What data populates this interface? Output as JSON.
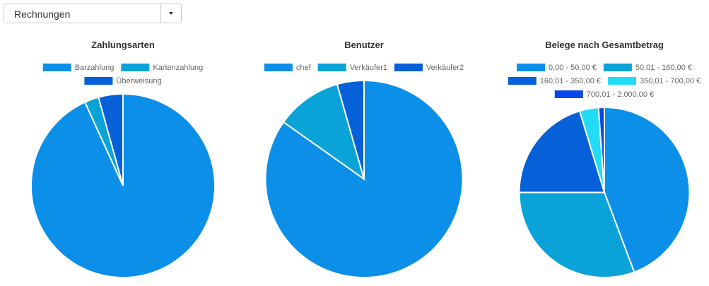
{
  "dropdown": {
    "label": "Rechnungen"
  },
  "chart_data": [
    {
      "type": "pie",
      "title": "Zahlungsarten",
      "categories": [
        "Barzahlung",
        "Kartenzahlung",
        "Überweisung"
      ],
      "values": [
        93.2,
        2.5,
        4.3
      ],
      "colors": [
        "#0b8fe9",
        "#0aa3d8",
        "#0660d8"
      ]
    },
    {
      "type": "pie",
      "title": "Benutzer",
      "categories": [
        "chef",
        "Verkäufer1",
        "Verkäufer2"
      ],
      "values": [
        84.8,
        10.8,
        4.4
      ],
      "colors": [
        "#0b8fe9",
        "#0aa3d8",
        "#0660d8"
      ]
    },
    {
      "type": "pie",
      "title": "Belege nach Gesamtbetrag",
      "categories": [
        "0,00 - 50,00 €",
        "50,01 - 160,00 €",
        "160,01 - 350,00 €",
        "350,01 - 700,00 €",
        "700,01 - 2.000,00 €"
      ],
      "values": [
        44.3,
        30.7,
        20.3,
        3.6,
        1.1
      ],
      "colors": [
        "#0b8fe9",
        "#0aa3d8",
        "#0660d8",
        "#22dcf6",
        "#0a45ec"
      ]
    }
  ]
}
